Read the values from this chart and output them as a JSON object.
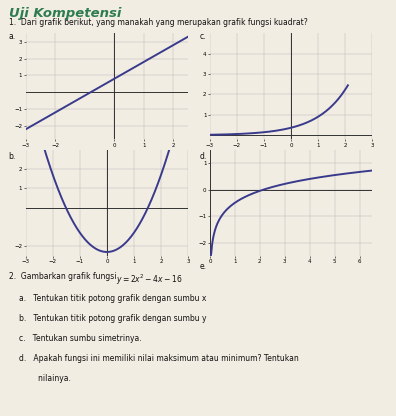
{
  "title": "Uji Kompetensi",
  "title_color": "#2e7d4f",
  "q1_text": "1.  Dari grafik berikut, yang manakah yang merupakan grafik fungsi kuadrat?",
  "line_color": "#3a3a8c",
  "axis_color": "#333333",
  "grid_color": "#bbbbbb",
  "bg_color": "#f2ede3",
  "text_color": "#111111",
  "graph_a_xlim": [
    -3,
    2.5
  ],
  "graph_a_ylim": [
    -2.8,
    3.5
  ],
  "graph_a_xticks": [
    -3,
    -2,
    0,
    1,
    2
  ],
  "graph_a_yticks": [
    -2,
    -1,
    1,
    2,
    3
  ],
  "graph_b_xlim": [
    -3,
    3
  ],
  "graph_b_ylim": [
    -2.5,
    3
  ],
  "graph_b_xticks": [
    -3,
    -2,
    -1,
    0,
    1,
    2,
    3
  ],
  "graph_b_yticks": [
    -2,
    1,
    2
  ],
  "graph_c_xlim": [
    -3,
    3
  ],
  "graph_c_ylim": [
    -0.2,
    5
  ],
  "graph_c_xticks": [
    -3,
    -2,
    -1,
    0,
    1,
    2,
    3
  ],
  "graph_c_yticks": [
    1,
    2,
    3,
    4
  ],
  "graph_d_xlim": [
    0,
    6.5
  ],
  "graph_d_ylim": [
    -2.5,
    1.5
  ],
  "graph_d_xticks": [
    0,
    1,
    2,
    3,
    4,
    5,
    6
  ],
  "graph_d_yticks": [
    -2,
    -1,
    0,
    1
  ],
  "sub_items": [
    "a.   Tentukan titik potong grafik dengan sumbu x",
    "b.   Tentukan titik potong grafik dengan sumbu y",
    "c.   Tentukan sumbu simetrinya.",
    "d.   Apakah fungsi ini memiliki nilai maksimum atau minimum? Tentukan"
  ]
}
